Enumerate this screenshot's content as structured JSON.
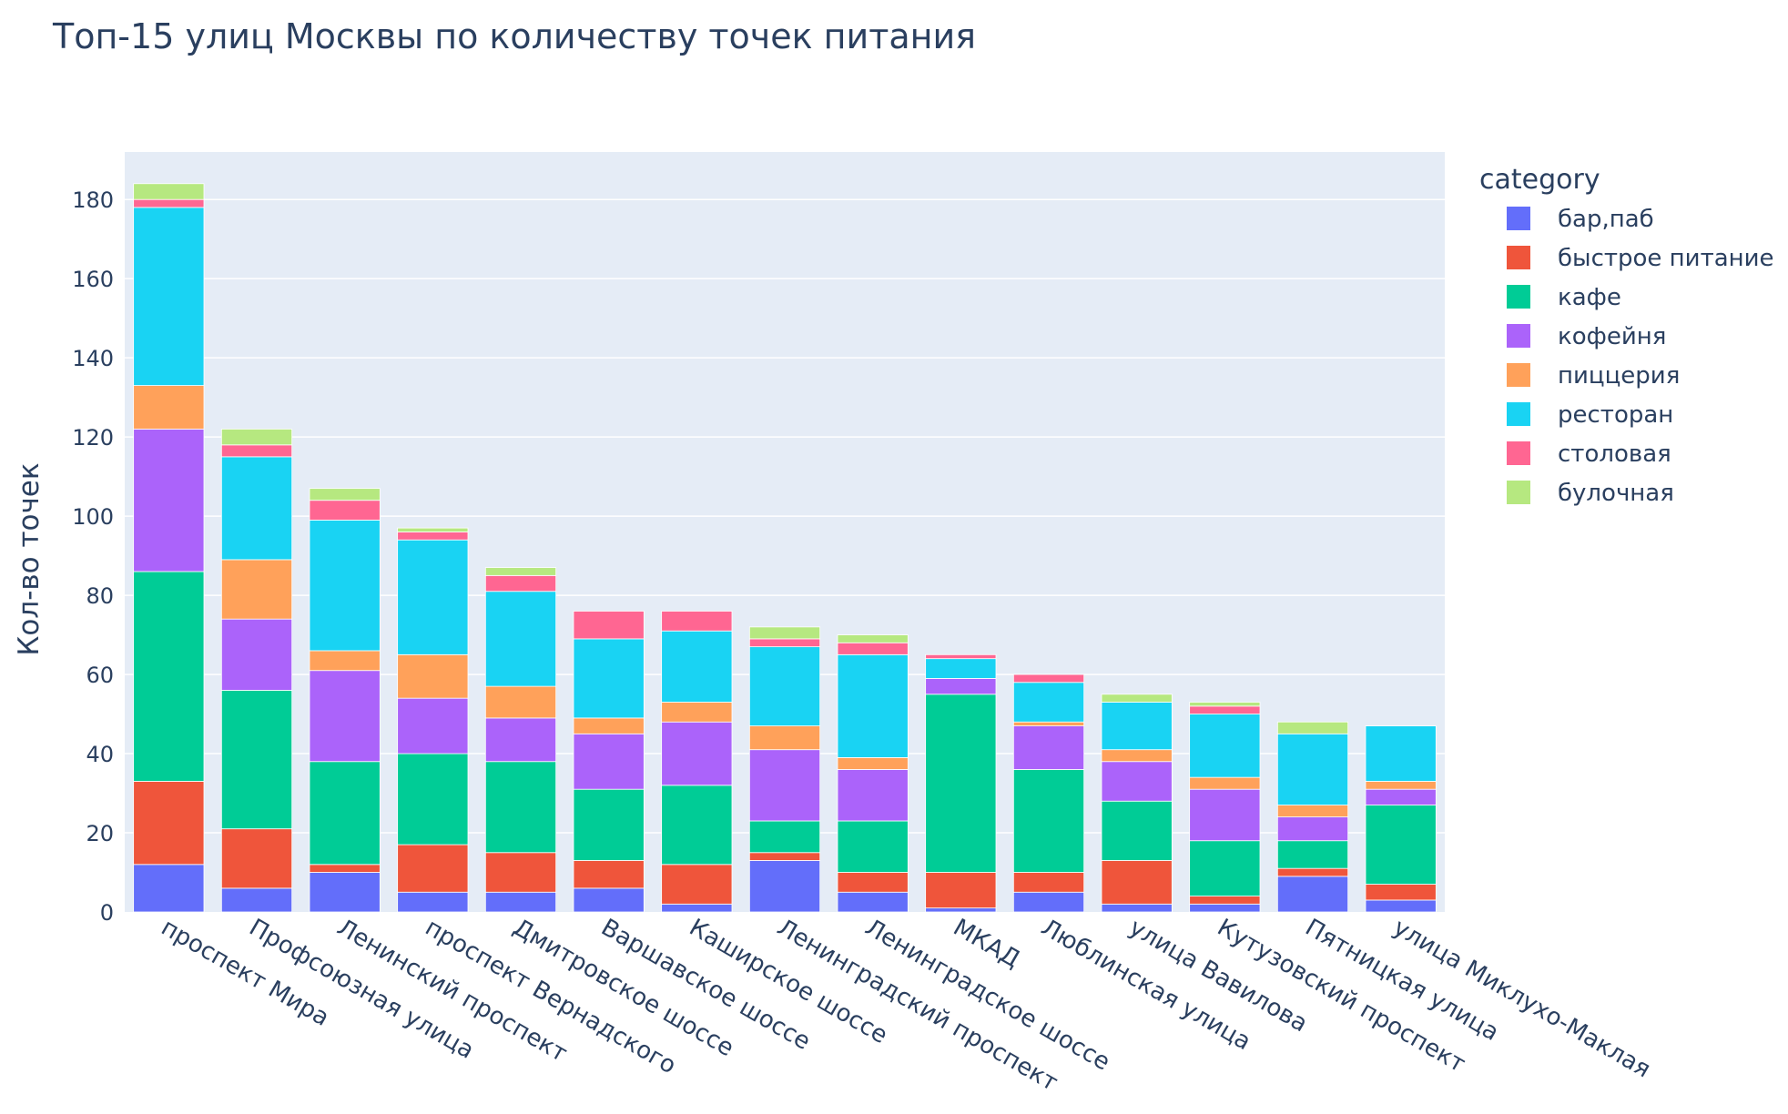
{
  "chart_data": {
    "type": "bar",
    "barmode": "stack",
    "title": "Топ-15 улиц Москвы по количеству точек питания",
    "xlabel": "",
    "ylabel": "Кол-во точек",
    "ylim": [
      0,
      192
    ],
    "yticks": [
      0,
      20,
      40,
      60,
      80,
      100,
      120,
      140,
      160,
      180
    ],
    "grid": true,
    "legend_title": "category",
    "legend_position": "right",
    "categories": [
      "проспект Мира",
      "Профсоюзная улица",
      "Ленинский проспект",
      "проспект Вернадского",
      "Дмитровское шоссе",
      "Варшавское шоссе",
      "Каширское шоссе",
      "Ленинградский проспект",
      "Ленинградское шоссе",
      "МКАД",
      "Люблинская улица",
      "улица Вавилова",
      "Кутузовский проспект",
      "Пятницкая улица",
      "улица Миклухо-Маклая"
    ],
    "series": [
      {
        "name": "бар,паб",
        "color": "#636efa",
        "values": [
          12,
          6,
          10,
          5,
          5,
          6,
          2,
          13,
          5,
          1,
          5,
          2,
          2,
          9,
          3
        ]
      },
      {
        "name": "быстрое питание",
        "color": "#ef553b",
        "values": [
          21,
          15,
          2,
          12,
          10,
          7,
          10,
          2,
          5,
          9,
          5,
          11,
          2,
          2,
          4
        ]
      },
      {
        "name": "кафе",
        "color": "#00cc96",
        "values": [
          53,
          35,
          26,
          23,
          23,
          18,
          20,
          8,
          13,
          45,
          26,
          15,
          14,
          7,
          20
        ]
      },
      {
        "name": "кофейня",
        "color": "#ab63fa",
        "values": [
          36,
          18,
          23,
          14,
          11,
          14,
          16,
          18,
          13,
          4,
          11,
          10,
          13,
          6,
          4
        ]
      },
      {
        "name": "пиццерия",
        "color": "#ffa15a",
        "values": [
          11,
          15,
          5,
          11,
          8,
          4,
          5,
          6,
          3,
          0,
          1,
          3,
          3,
          3,
          2
        ]
      },
      {
        "name": "ресторан",
        "color": "#19d3f3",
        "values": [
          45,
          26,
          33,
          29,
          24,
          20,
          18,
          20,
          26,
          5,
          10,
          12,
          16,
          18,
          14
        ]
      },
      {
        "name": "столовая",
        "color": "#ff6692",
        "values": [
          2,
          3,
          5,
          2,
          4,
          7,
          5,
          2,
          3,
          1,
          2,
          0,
          2,
          0,
          0
        ]
      },
      {
        "name": "булочная",
        "color": "#b6e880",
        "values": [
          4,
          4,
          3,
          1,
          2,
          0,
          0,
          3,
          2,
          0,
          0,
          2,
          1,
          3,
          0
        ]
      }
    ]
  },
  "colors": {
    "plot_background": "#e5ecf6",
    "grid": "#ffffff",
    "text": "#2a3f5f"
  }
}
